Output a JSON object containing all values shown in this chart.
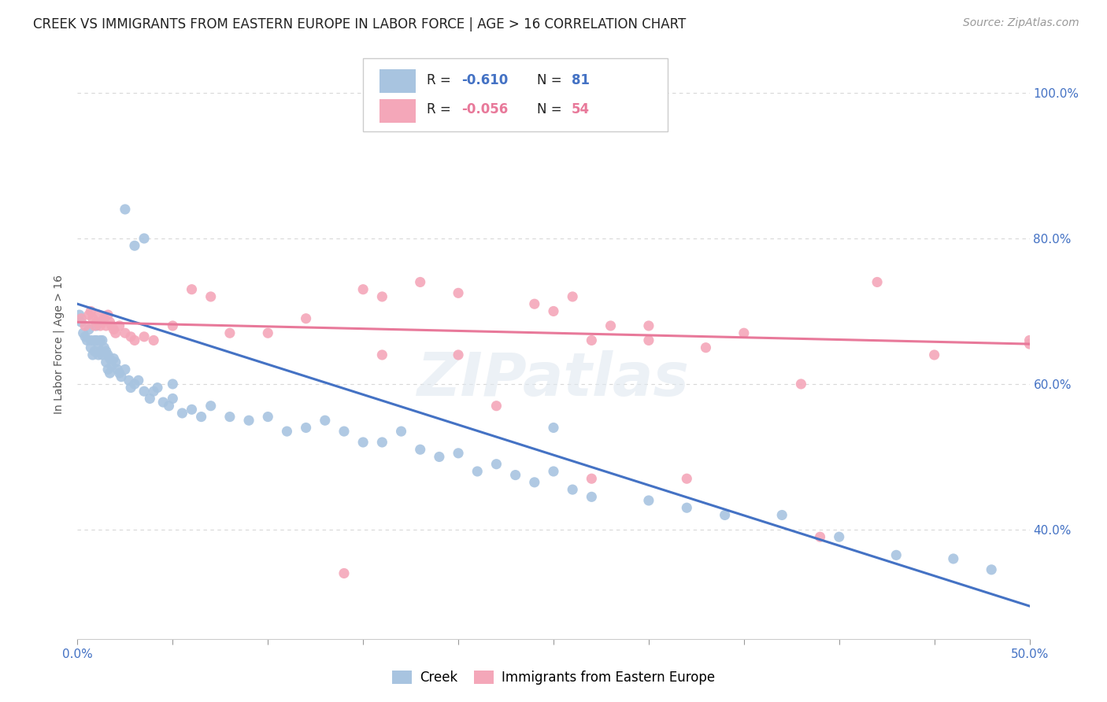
{
  "title": "CREEK VS IMMIGRANTS FROM EASTERN EUROPE IN LABOR FORCE | AGE > 16 CORRELATION CHART",
  "source": "Source: ZipAtlas.com",
  "ylabel": "In Labor Force | Age > 16",
  "xlim": [
    0.0,
    0.5
  ],
  "ylim": [
    0.25,
    1.06
  ],
  "xticks": [
    0.0,
    0.5
  ],
  "xticklabels": [
    "0.0%",
    "50.0%"
  ],
  "yticks": [
    0.4,
    0.6,
    0.8,
    1.0
  ],
  "yticklabels_right": [
    "40.0%",
    "60.0%",
    "80.0%",
    "100.0%"
  ],
  "creek_color": "#a8c4e0",
  "creek_line_color": "#4472c4",
  "ee_color": "#f4a7b9",
  "ee_line_color": "#e8799a",
  "creek_R": "-0.610",
  "creek_N": "81",
  "ee_R": "-0.056",
  "ee_N": "54",
  "legend_labels": [
    "Creek",
    "Immigrants from Eastern Europe"
  ],
  "watermark": "ZIPatlas",
  "background_color": "#ffffff",
  "grid_color": "#d8d8d8",
  "creek_x": [
    0.001,
    0.002,
    0.003,
    0.004,
    0.005,
    0.006,
    0.007,
    0.007,
    0.008,
    0.009,
    0.009,
    0.01,
    0.01,
    0.011,
    0.011,
    0.012,
    0.012,
    0.013,
    0.013,
    0.014,
    0.015,
    0.015,
    0.016,
    0.016,
    0.017,
    0.017,
    0.018,
    0.019,
    0.02,
    0.021,
    0.022,
    0.023,
    0.025,
    0.027,
    0.028,
    0.03,
    0.032,
    0.035,
    0.038,
    0.04,
    0.042,
    0.045,
    0.048,
    0.05,
    0.055,
    0.06,
    0.065,
    0.07,
    0.08,
    0.09,
    0.1,
    0.11,
    0.12,
    0.13,
    0.14,
    0.15,
    0.16,
    0.17,
    0.18,
    0.19,
    0.2,
    0.21,
    0.22,
    0.23,
    0.24,
    0.25,
    0.26,
    0.27,
    0.3,
    0.32,
    0.34,
    0.37,
    0.4,
    0.43,
    0.46,
    0.48,
    0.025,
    0.03,
    0.035,
    0.05,
    0.25
  ],
  "creek_y": [
    0.695,
    0.685,
    0.67,
    0.665,
    0.66,
    0.675,
    0.66,
    0.65,
    0.64,
    0.66,
    0.645,
    0.68,
    0.66,
    0.655,
    0.64,
    0.66,
    0.645,
    0.66,
    0.64,
    0.65,
    0.645,
    0.63,
    0.64,
    0.62,
    0.635,
    0.615,
    0.625,
    0.635,
    0.63,
    0.62,
    0.615,
    0.61,
    0.62,
    0.605,
    0.595,
    0.6,
    0.605,
    0.59,
    0.58,
    0.59,
    0.595,
    0.575,
    0.57,
    0.58,
    0.56,
    0.565,
    0.555,
    0.57,
    0.555,
    0.55,
    0.555,
    0.535,
    0.54,
    0.55,
    0.535,
    0.52,
    0.52,
    0.535,
    0.51,
    0.5,
    0.505,
    0.48,
    0.49,
    0.475,
    0.465,
    0.48,
    0.455,
    0.445,
    0.44,
    0.43,
    0.42,
    0.42,
    0.39,
    0.365,
    0.36,
    0.345,
    0.84,
    0.79,
    0.8,
    0.6,
    0.54
  ],
  "ee_x": [
    0.002,
    0.004,
    0.006,
    0.007,
    0.008,
    0.009,
    0.01,
    0.011,
    0.012,
    0.013,
    0.014,
    0.015,
    0.016,
    0.017,
    0.018,
    0.019,
    0.02,
    0.022,
    0.025,
    0.028,
    0.03,
    0.035,
    0.04,
    0.05,
    0.06,
    0.07,
    0.08,
    0.1,
    0.12,
    0.15,
    0.16,
    0.18,
    0.2,
    0.22,
    0.24,
    0.26,
    0.28,
    0.3,
    0.32,
    0.35,
    0.38,
    0.42,
    0.45,
    0.5,
    0.14,
    0.16,
    0.2,
    0.25,
    0.27,
    0.3,
    0.33,
    0.27,
    0.39,
    0.5
  ],
  "ee_y": [
    0.69,
    0.68,
    0.695,
    0.7,
    0.69,
    0.68,
    0.685,
    0.695,
    0.68,
    0.685,
    0.69,
    0.68,
    0.695,
    0.685,
    0.68,
    0.675,
    0.67,
    0.68,
    0.67,
    0.665,
    0.66,
    0.665,
    0.66,
    0.68,
    0.73,
    0.72,
    0.67,
    0.67,
    0.69,
    0.73,
    0.64,
    0.74,
    0.64,
    0.57,
    0.71,
    0.72,
    0.68,
    0.66,
    0.47,
    0.67,
    0.6,
    0.74,
    0.64,
    0.655,
    0.34,
    0.72,
    0.725,
    0.7,
    0.66,
    0.68,
    0.65,
    0.47,
    0.39,
    0.66
  ],
  "creek_trend_x": [
    0.0,
    0.5
  ],
  "creek_trend_y": [
    0.71,
    0.295
  ],
  "ee_trend_x": [
    0.0,
    0.5
  ],
  "ee_trend_y": [
    0.685,
    0.655
  ],
  "title_fontsize": 12,
  "axis_label_fontsize": 10,
  "tick_fontsize": 11,
  "source_fontsize": 10
}
